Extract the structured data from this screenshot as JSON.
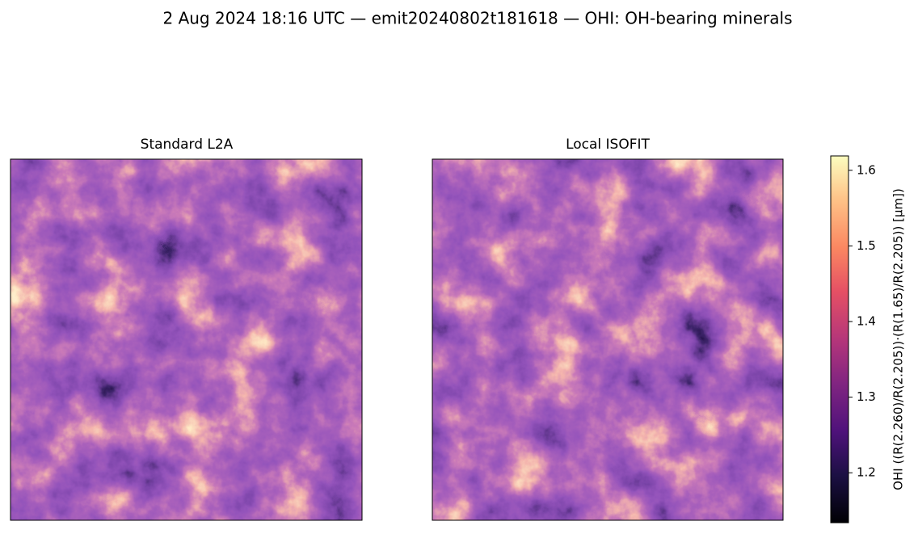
{
  "chart_data": {
    "type": "image",
    "title": "2 Aug 2024 18:16 UTC — emit20240802t181618 — OHI: OH-bearing minerals",
    "panels": [
      {
        "title": "Standard L2A"
      },
      {
        "title": "Local ISOFIT"
      }
    ],
    "colorbar": {
      "label": "OHI  ((R(2.260)/R(2.205))·(R(1.65)/R(2.205))  [μm])",
      "colormap": "magma",
      "lim": [
        1.134,
        1.619
      ],
      "ticks": [
        1.2,
        1.3,
        1.4,
        1.5,
        1.6
      ]
    }
  }
}
